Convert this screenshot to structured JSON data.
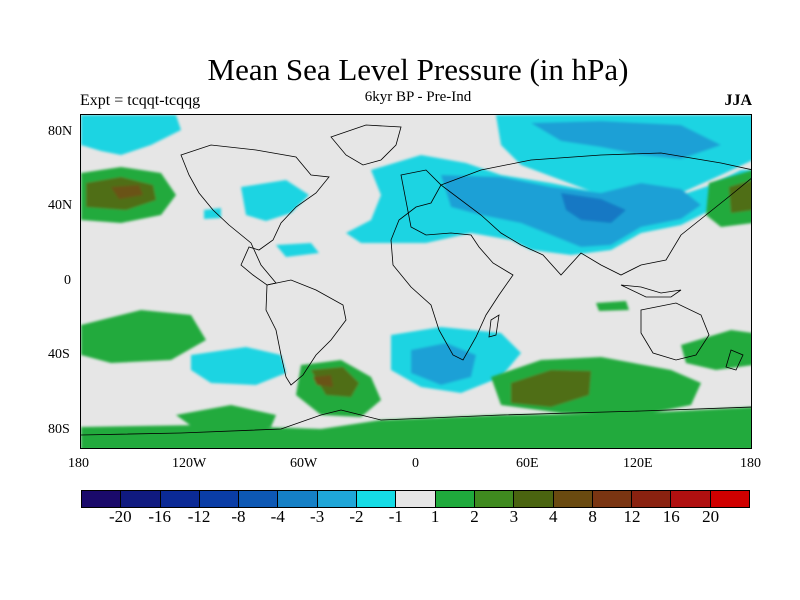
{
  "title": "Mean Sea Level Pressure (in hPa)",
  "subtitle": "6kyr BP - Pre-Ind",
  "experiment": "Expt = tcqqt-tcqqg",
  "season": "JJA",
  "lat_labels": [
    "80N",
    "40N",
    "0",
    "40S",
    "80S"
  ],
  "lon_labels": [
    "180",
    "120W",
    "60W",
    "0",
    "60E",
    "120E",
    "180"
  ],
  "colorbar": {
    "colors": [
      "#1a0a6b",
      "#101a80",
      "#0b2a96",
      "#0a3da6",
      "#0d58b4",
      "#1580c6",
      "#1fa6d8",
      "#15dce6",
      "#e6e6e6",
      "#1faa3c",
      "#3f8a1f",
      "#4a6410",
      "#6a4a10",
      "#7a3512",
      "#8a2210",
      "#b01010",
      "#d00000"
    ],
    "labels": [
      "-20",
      "-16",
      "-12",
      "-8",
      "-4",
      "-3",
      "-2",
      "-1",
      "1",
      "2",
      "3",
      "4",
      "8",
      "12",
      "16",
      "20"
    ]
  },
  "colors": {
    "ocean_neutral": "#e6e6e6",
    "light_cyan": "#1fd4e2",
    "mid_blue": "#1aa0d6",
    "deep_blue": "#1578c4",
    "light_green": "#22aa3e",
    "olive": "#4f6e18",
    "brown": "#6a5218",
    "coast": "#000000"
  }
}
